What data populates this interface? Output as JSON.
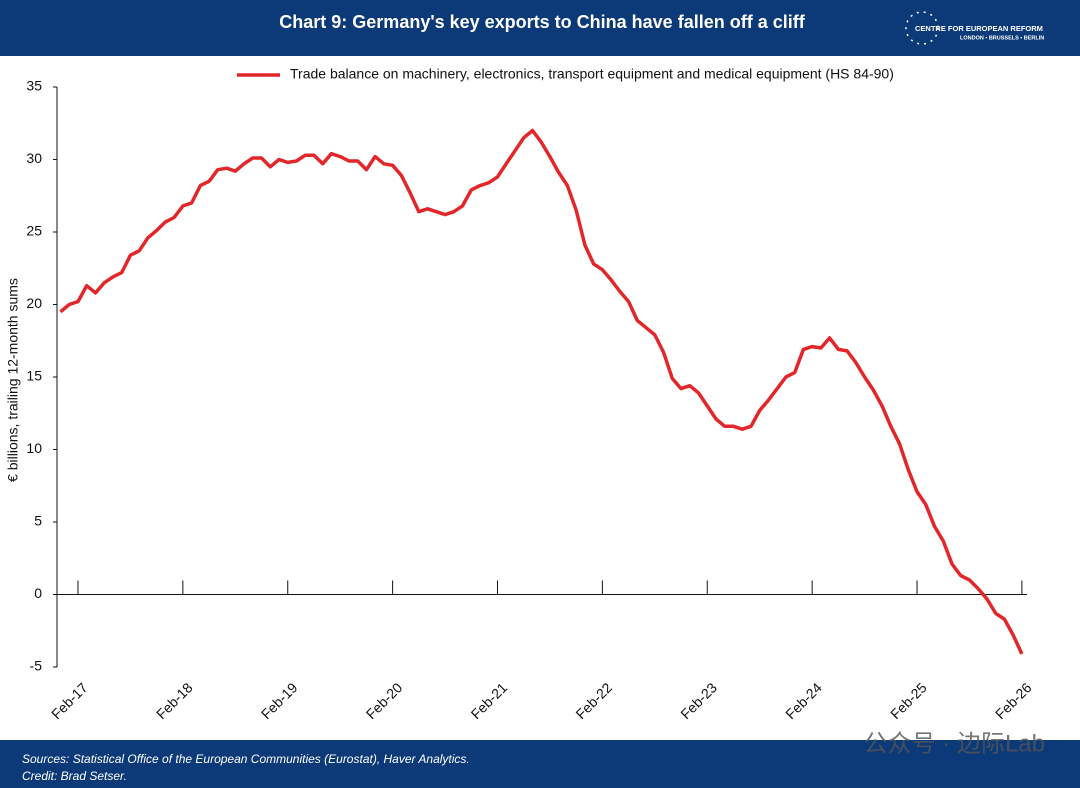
{
  "chart_data": {
    "type": "line",
    "title": "Chart 9: Germany's key exports to China have fallen off a cliff",
    "y_label": "€ billions, trailing 12-month sums",
    "categories": [
      null,
      null,
      "Feb-17",
      null,
      null,
      null,
      null,
      null,
      null,
      null,
      null,
      null,
      null,
      null,
      "Feb-18",
      null,
      null,
      null,
      null,
      null,
      null,
      null,
      null,
      null,
      null,
      null,
      "Feb-19",
      null,
      null,
      null,
      null,
      null,
      null,
      null,
      null,
      null,
      null,
      null,
      "Feb-20",
      null,
      null,
      null,
      null,
      null,
      null,
      null,
      null,
      null,
      null,
      null,
      "Feb-21",
      null,
      null,
      null,
      null,
      null,
      null,
      null,
      null,
      null,
      null,
      null,
      "Feb-22",
      null,
      null,
      null,
      null,
      null,
      null,
      null,
      null,
      null,
      null,
      null,
      "Feb-23",
      null,
      null,
      null,
      null,
      null,
      null,
      null,
      null,
      null,
      null,
      null,
      "Feb-24",
      null,
      null,
      null,
      null,
      null,
      null,
      null,
      null,
      null,
      null,
      null,
      "Feb-25",
      null,
      null,
      null,
      null,
      null,
      null,
      null,
      null,
      null,
      null,
      null,
      "Feb-26"
    ],
    "series": [
      {
        "name": "Trade balance on machinery, electronics, transport equipment and medical equipment (HS 84-90)",
        "color": "#e3262a",
        "values": [
          19.5,
          20.0,
          20.2,
          21.3,
          20.8,
          21.5,
          21.9,
          22.2,
          23.4,
          23.7,
          24.6,
          25.1,
          25.7,
          26.0,
          26.8,
          27.0,
          28.2,
          28.5,
          29.3,
          29.4,
          29.2,
          29.7,
          30.1,
          30.1,
          29.5,
          30.0,
          29.8,
          29.9,
          30.3,
          30.3,
          29.7,
          30.4,
          30.2,
          29.9,
          29.9,
          29.3,
          30.2,
          29.7,
          29.6,
          28.9,
          27.7,
          26.4,
          26.6,
          26.4,
          26.2,
          26.4,
          26.8,
          27.9,
          28.2,
          28.4,
          28.8,
          29.7,
          30.6,
          31.5,
          32.0,
          31.2,
          30.2,
          29.1,
          28.2,
          26.5,
          24.1,
          22.8,
          22.4,
          21.7,
          20.9,
          20.2,
          18.9,
          18.4,
          17.9,
          16.7,
          14.9,
          14.2,
          14.4,
          13.9,
          13.0,
          12.1,
          11.6,
          11.6,
          11.4,
          11.6,
          12.7,
          13.4,
          14.2,
          15.0,
          15.3,
          16.9,
          17.1,
          17.0,
          17.7,
          16.9,
          16.8,
          16.0,
          15.0,
          14.1,
          13.0,
          11.6,
          10.4,
          8.6,
          7.1,
          6.2,
          4.7,
          3.7,
          2.1,
          1.3,
          1.0,
          0.4,
          -0.3,
          -1.3,
          -1.7,
          -2.8,
          -4.1
        ]
      }
    ],
    "ylim": [
      -5,
      35
    ],
    "yticks": [
      35,
      30,
      25,
      20,
      15,
      10,
      5,
      0,
      -5
    ]
  },
  "logo": {
    "name": "CENTRE FOR EUROPEAN REFORM",
    "cities": "LONDON • BRUSSELS • BERLIN"
  },
  "footer": {
    "sources": "Sources: Statistical Office of the European Communities (Eurostat), Haver Analytics.",
    "credit": "Credit: Brad Setser."
  },
  "watermark": "公众号 · 边际Lab"
}
